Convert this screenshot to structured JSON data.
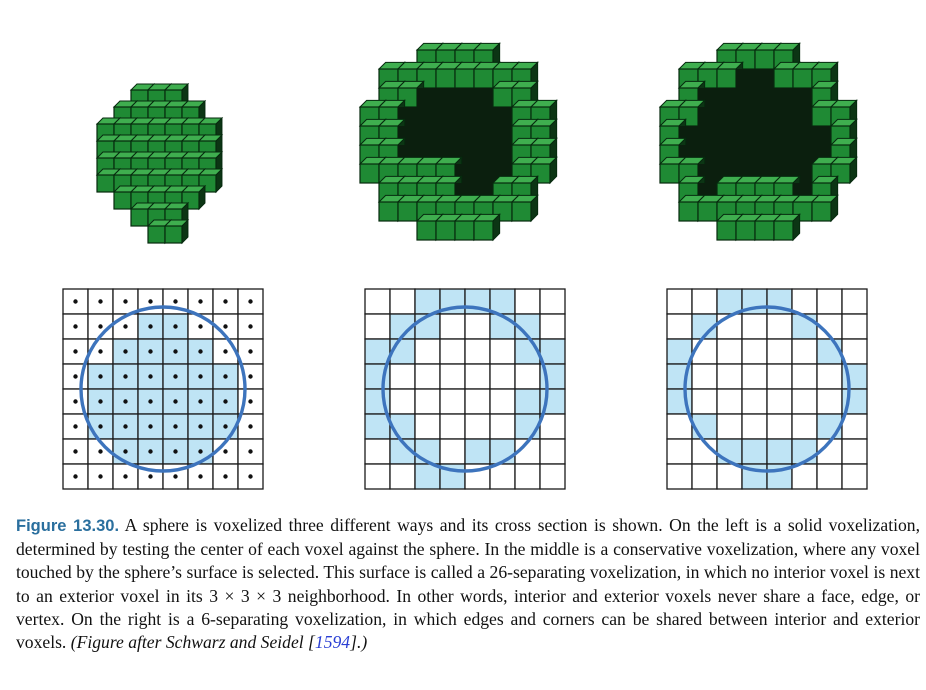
{
  "figure": {
    "panels": [
      {
        "id": "solid",
        "render_desc": "solid voxelized sphere",
        "filled": "solid",
        "dots": true
      },
      {
        "id": "conservative",
        "render_desc": "26-separating voxelization",
        "filled": "conservative",
        "dots": false
      },
      {
        "id": "six_sep",
        "render_desc": "6-separating voxelization",
        "filled": "six",
        "dots": false
      }
    ],
    "grid_size": 8,
    "colors": {
      "grid_line": "#1a1a1a",
      "cell_fill": "#bfe4f5",
      "circle": "#3d74bd",
      "voxel": "#1f8a34",
      "voxel_dark": "#0e3d17",
      "dot": "#111111"
    }
  },
  "caption": {
    "label": "Figure 13.30.",
    "body": " A sphere is voxelized three different ways and its cross section is shown. On the left is a solid voxelization, determined by testing the center of each voxel against the sphere. In the middle is a conservative voxelization, where any voxel touched by the sphere’s surface is selected. This surface is called a 26-separating voxelization, in which no interior voxel is next to an exterior voxel in its 3 × 3 × 3 neighborhood. In other words, interior and exterior voxels never share a face, edge, or vertex. On the right is a 6-separating voxelization, in which edges and corners can be shared between interior and exterior voxels. ",
    "credit_pre": "(Figure after Schwarz and Seidel [",
    "credit_ref": "1594",
    "credit_post": "].)"
  }
}
